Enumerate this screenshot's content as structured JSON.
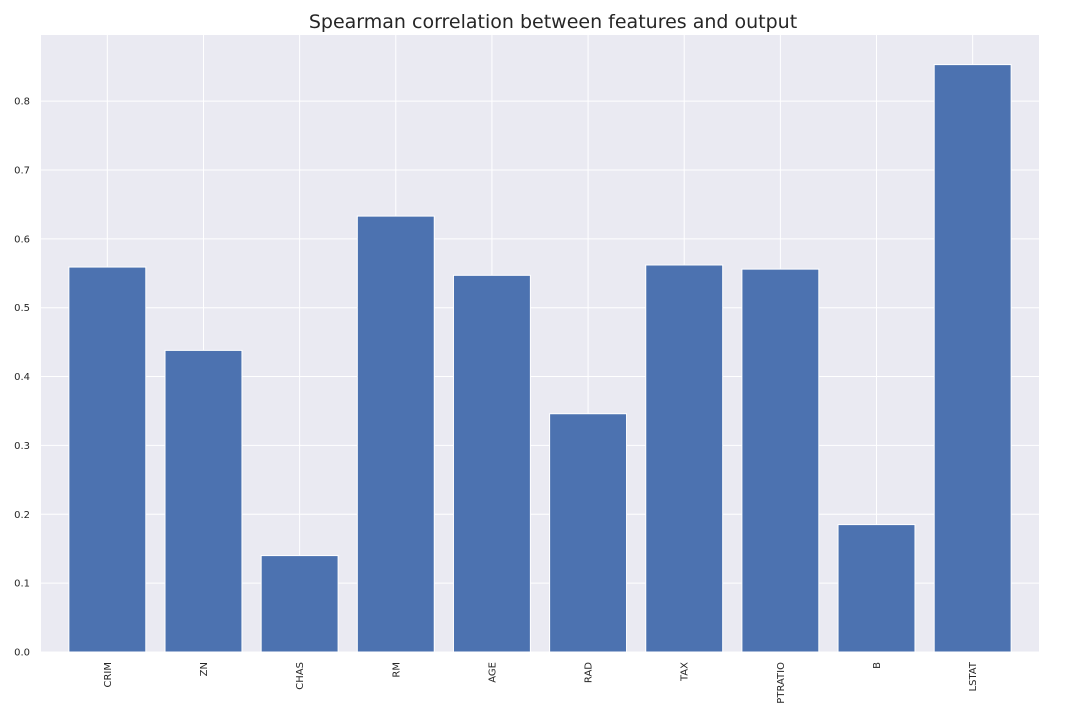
{
  "chart_data": {
    "type": "bar",
    "title": "Spearman correlation between features and output",
    "xlabel": "",
    "ylabel": "",
    "categories": [
      "CRIM",
      "ZN",
      "CHAS",
      "RM",
      "AGE",
      "RAD",
      "TAX",
      "PTRATIO",
      "B",
      "LSTAT"
    ],
    "values": [
      0.559,
      0.438,
      0.14,
      0.633,
      0.547,
      0.346,
      0.562,
      0.556,
      0.185,
      0.853
    ],
    "ylim": [
      0,
      0.896
    ],
    "yticks": [
      0.0,
      0.1,
      0.2,
      0.3,
      0.4,
      0.5,
      0.6,
      0.7,
      0.8
    ],
    "ytick_labels": [
      "0.0",
      "0.1",
      "0.2",
      "0.3",
      "0.4",
      "0.5",
      "0.6",
      "0.7",
      "0.8"
    ],
    "xtick_rotation": "vertical",
    "grid": true,
    "colors": {
      "bar": "#4c72b0",
      "plot_background": "#eaeaf2",
      "grid": "#ffffff",
      "text": "#262626"
    }
  }
}
